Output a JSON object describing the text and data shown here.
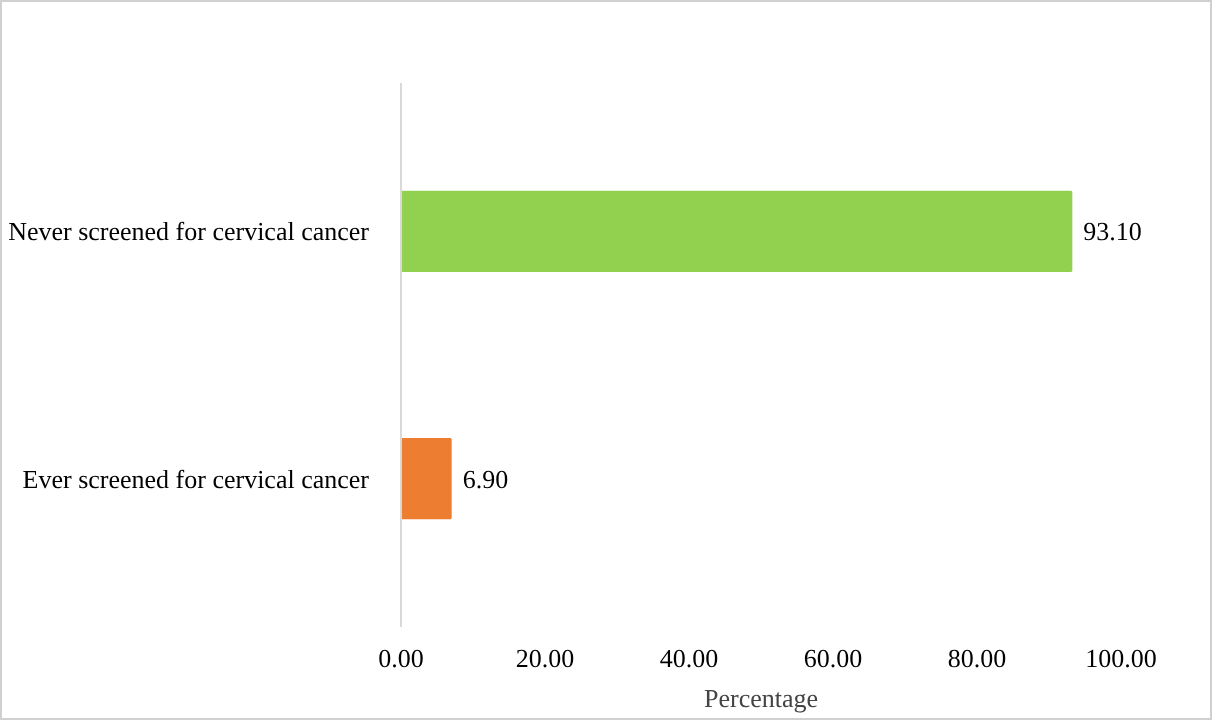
{
  "chart_data": {
    "type": "bar",
    "orientation": "horizontal",
    "xlabel": "Percentage",
    "categories": [
      "Never screened for cervical cancer",
      "Ever screened for cervical cancer"
    ],
    "values": [
      93.1,
      6.9
    ],
    "colors": [
      "#92d050",
      "#ed7d31"
    ],
    "value_labels": [
      "93.10",
      "6.90"
    ],
    "xlim": [
      0,
      100
    ],
    "xticks": [
      {
        "value": 0,
        "label": "0.00"
      },
      {
        "value": 20,
        "label": "20.00"
      },
      {
        "value": 40,
        "label": "40.00"
      },
      {
        "value": 60,
        "label": "60.00"
      },
      {
        "value": 80,
        "label": "80.00"
      },
      {
        "value": 100,
        "label": "100.00"
      }
    ],
    "grid": false
  }
}
